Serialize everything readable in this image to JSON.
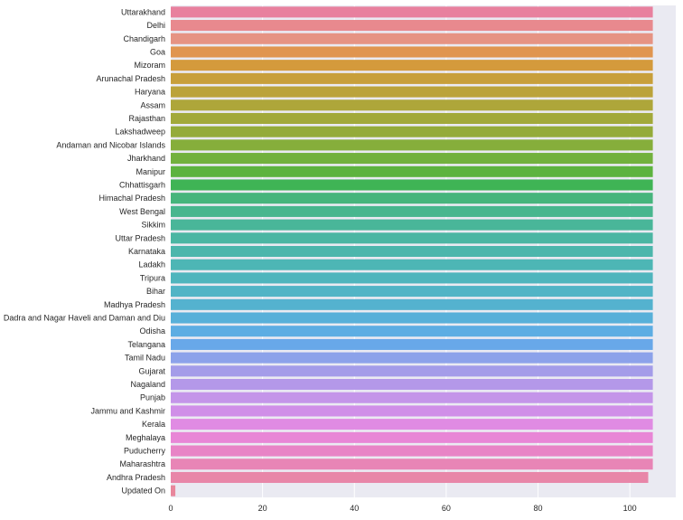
{
  "chart_data": {
    "type": "bar",
    "orientation": "horizontal",
    "title": "",
    "xlabel": "",
    "ylabel": "",
    "xlim": [
      0,
      110
    ],
    "xticks": [
      0,
      20,
      40,
      60,
      80,
      100
    ],
    "grid": true,
    "style": "seaborn-darkgrid",
    "categories": [
      "Uttarakhand",
      "Delhi",
      "Chandigarh",
      "Goa",
      "Mizoram",
      "Arunachal Pradesh",
      "Haryana",
      "Assam",
      "Rajasthan",
      "Lakshadweep",
      "Andaman and Nicobar Islands",
      "Jharkhand",
      "Manipur",
      "Chhattisgarh",
      "Himachal Pradesh",
      "West Bengal",
      "Sikkim",
      "Uttar Pradesh",
      "Karnataka",
      "Ladakh",
      "Tripura",
      "Bihar",
      "Madhya Pradesh",
      "Dadra and Nagar Haveli and Daman and Diu",
      "Odisha",
      "Telangana",
      "Tamil Nadu",
      "Gujarat",
      "Nagaland",
      "Punjab",
      "Jammu and Kashmir",
      "Kerala",
      "Meghalaya",
      "Puducherry",
      "Maharashtra",
      "Andhra Pradesh",
      "Updated On"
    ],
    "values": [
      105,
      105,
      105,
      105,
      105,
      105,
      105,
      105,
      105,
      105,
      105,
      105,
      105,
      105,
      105,
      105,
      105,
      105,
      105,
      105,
      105,
      105,
      105,
      105,
      105,
      105,
      105,
      105,
      105,
      105,
      105,
      105,
      105,
      105,
      105,
      104,
      1
    ],
    "colors": [
      "#e8809e",
      "#e8898e",
      "#e69383",
      "#e0954f",
      "#d49a3c",
      "#c89f3a",
      "#bba33a",
      "#aea63a",
      "#a2a93a",
      "#94ab3a",
      "#86ae3b",
      "#72b13d",
      "#5db33f",
      "#3fb455",
      "#46b57c",
      "#48b68e",
      "#49b699",
      "#4bb6a3",
      "#4cb6ac",
      "#4db6b5",
      "#4fb5bd",
      "#51b4c6",
      "#54b2cf",
      "#58b0d9",
      "#5dade3",
      "#68a8e9",
      "#8ca2ea",
      "#a49ce9",
      "#b498e9",
      "#c495e9",
      "#d08fe8",
      "#e08be3",
      "#e886d6",
      "#e884c6",
      "#e885b6",
      "#e886a8",
      "#e8879c"
    ]
  }
}
